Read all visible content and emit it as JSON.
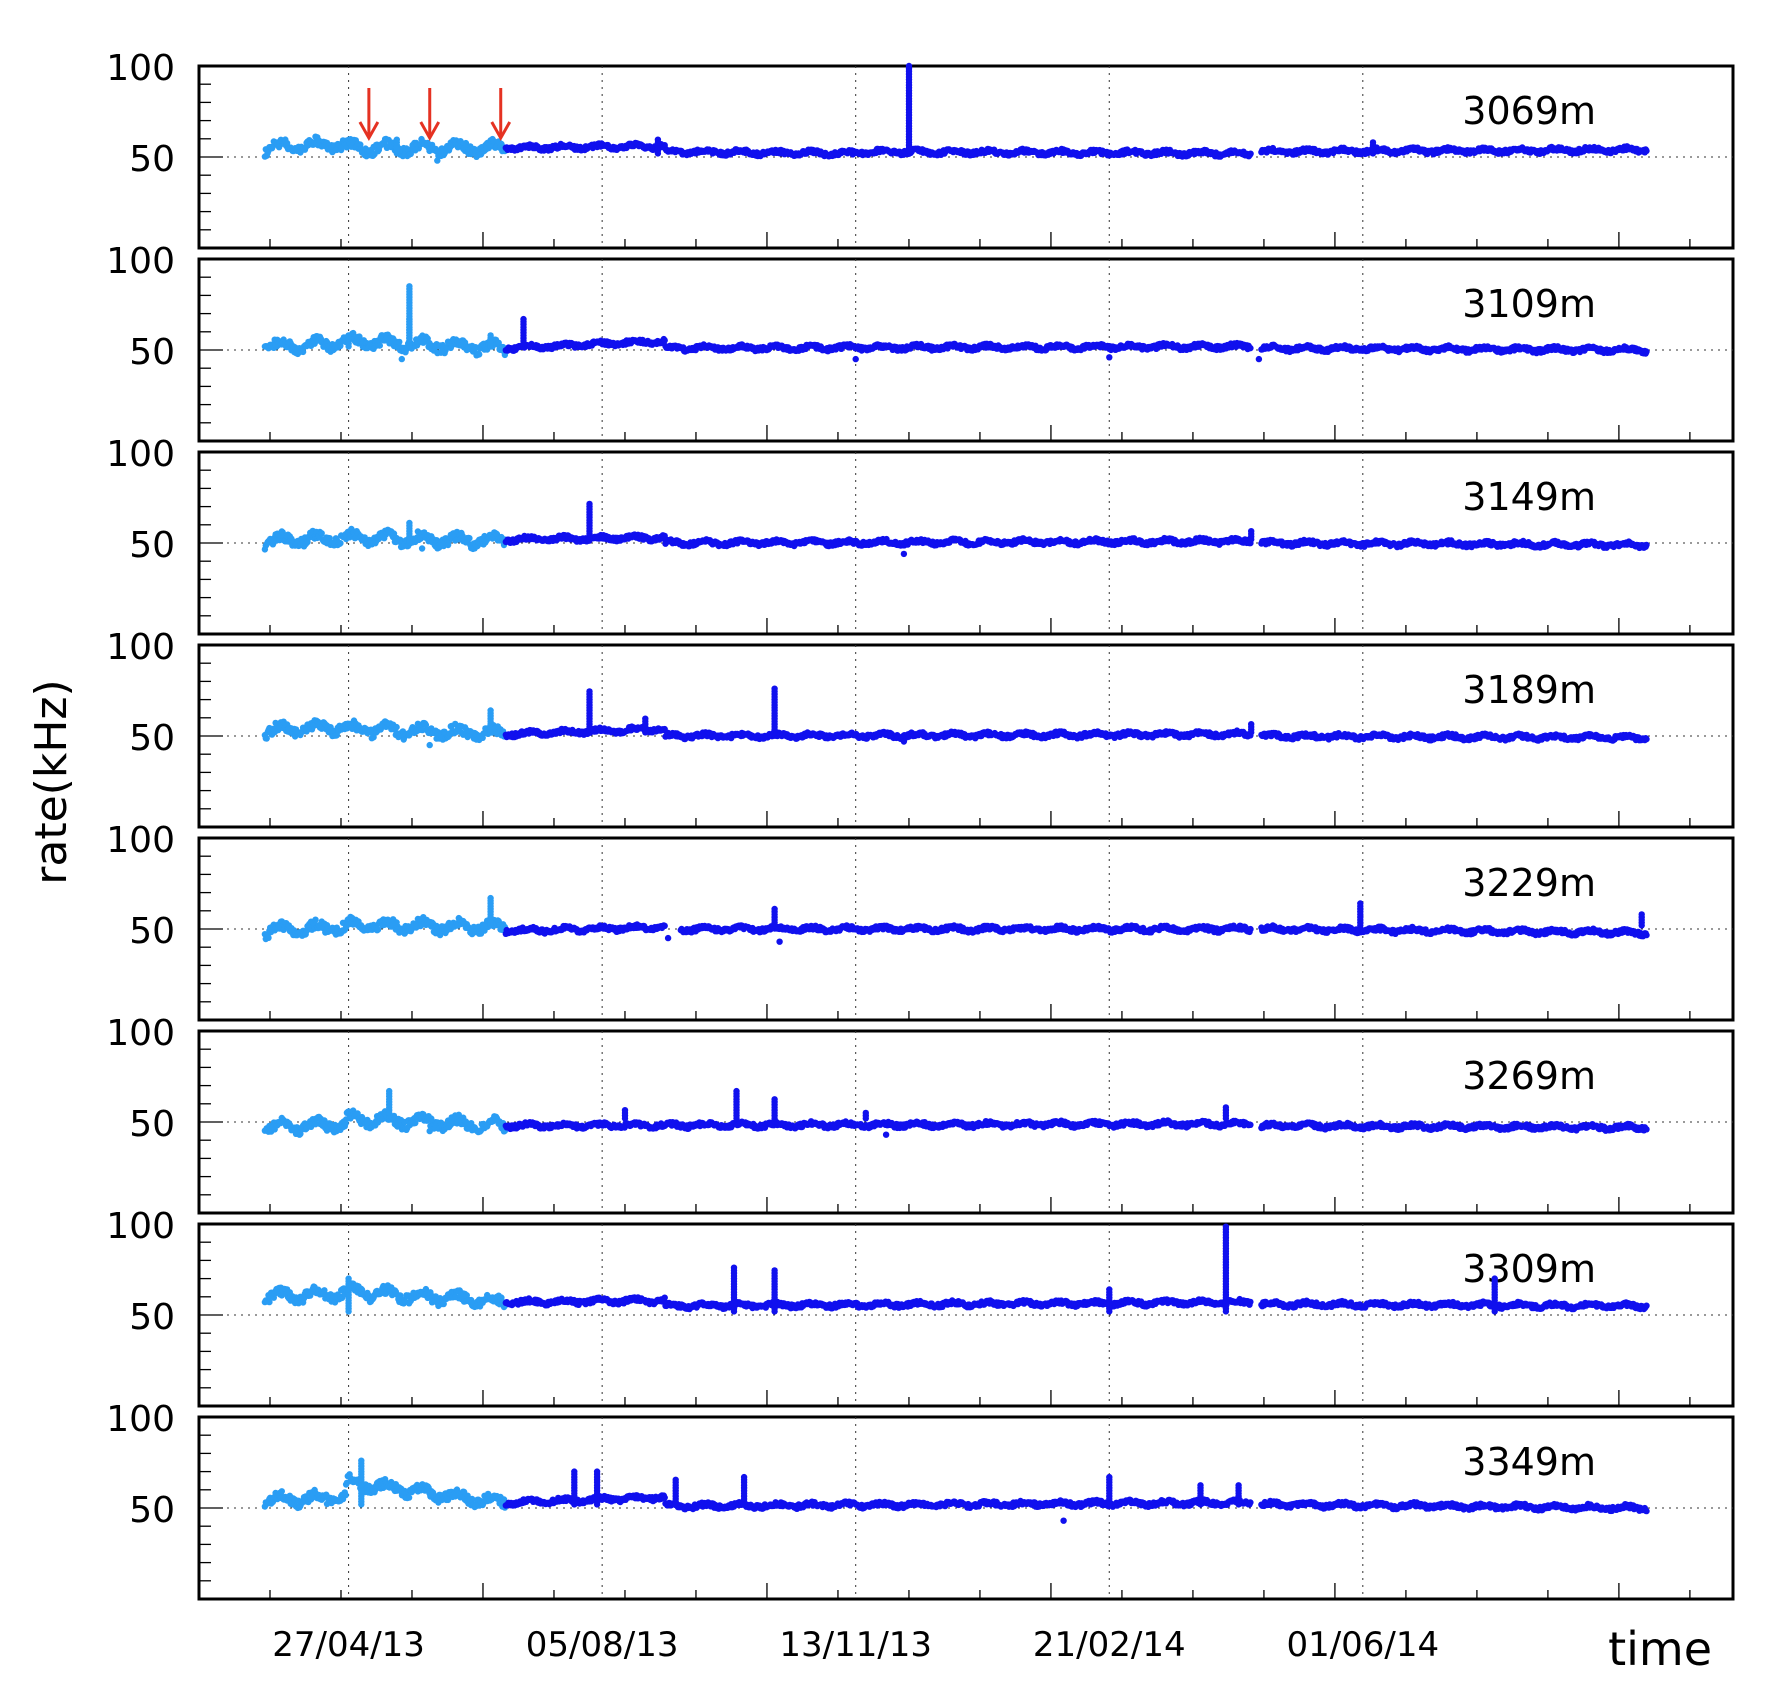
{
  "chart_data": {
    "type": "scatter",
    "ylabel": "rate(kHz)",
    "xlabel": "time",
    "x_ticks": [
      "27/04/13",
      "05/08/13",
      "13/11/13",
      "21/02/14",
      "01/06/14"
    ],
    "x_range": [
      "2013-02-27",
      "2014-10-25"
    ],
    "y_ticks": [
      50,
      100
    ],
    "ylim": [
      0,
      100
    ],
    "grid": "dotted, at x major ticks and y = 50",
    "colors": {
      "early": "#2a9df4",
      "late": "#1010ee",
      "arrow": "#e53222"
    },
    "arrows": [
      "2013-05-05",
      "2013-05-29",
      "2013-06-26"
    ],
    "panels": [
      {
        "label": "3069m",
        "segments": [
          [
            "2013-03-25",
            "2013-04-26",
            55,
            57,
            "early"
          ],
          [
            "2013-04-26",
            "2013-06-28",
            55,
            55,
            "early"
          ],
          [
            "2013-06-28",
            "2013-08-30",
            55,
            56,
            "late"
          ],
          [
            "2013-08-30",
            "2013-11-13",
            53,
            52,
            "late"
          ],
          [
            "2013-11-13",
            "2014-04-18",
            53,
            52,
            "late"
          ],
          [
            "2014-04-22",
            "2014-09-21",
            53,
            54,
            "late"
          ]
        ],
        "spikes": [
          [
            "2013-12-04",
            100
          ],
          [
            "2013-05-16",
            60
          ],
          [
            "2013-08-27",
            60
          ],
          [
            "2014-06-05",
            58
          ]
        ],
        "outliers": [
          [
            "2013-06-01",
            48
          ]
        ]
      },
      {
        "label": "3109m",
        "segments": [
          [
            "2013-03-25",
            "2013-04-26",
            52,
            54,
            "early"
          ],
          [
            "2013-04-26",
            "2013-06-28",
            55,
            51,
            "early"
          ],
          [
            "2013-06-28",
            "2013-08-30",
            51,
            55,
            "late"
          ],
          [
            "2013-08-30",
            "2014-04-18",
            51,
            52,
            "late"
          ],
          [
            "2014-04-22",
            "2014-09-21",
            51,
            50,
            "late"
          ]
        ],
        "spikes": [
          [
            "2013-05-21",
            85
          ],
          [
            "2013-05-21",
            68
          ],
          [
            "2013-07-05",
            68
          ],
          [
            "2013-04-27",
            59
          ],
          [
            "2013-06-22",
            59
          ]
        ],
        "outliers": [
          [
            "2013-05-18",
            45
          ],
          [
            "2013-11-13",
            45
          ],
          [
            "2014-02-21",
            46
          ],
          [
            "2014-04-21",
            45
          ]
        ]
      },
      {
        "label": "3149m",
        "segments": [
          [
            "2013-03-25",
            "2013-04-26",
            51,
            53,
            "early"
          ],
          [
            "2013-04-26",
            "2013-06-28",
            53,
            51,
            "early"
          ],
          [
            "2013-06-28",
            "2013-08-30",
            52,
            53,
            "late"
          ],
          [
            "2013-08-30",
            "2014-04-18",
            50,
            51,
            "late"
          ],
          [
            "2014-04-22",
            "2014-09-21",
            50,
            49,
            "late"
          ]
        ],
        "spikes": [
          [
            "2013-07-31",
            72
          ],
          [
            "2013-05-21",
            61
          ],
          [
            "2014-04-18",
            57
          ]
        ],
        "outliers": [
          [
            "2013-12-02",
            44
          ],
          [
            "2013-05-26",
            47
          ]
        ]
      },
      {
        "label": "3189m",
        "segments": [
          [
            "2013-03-25",
            "2013-04-26",
            53,
            55,
            "early"
          ],
          [
            "2013-04-26",
            "2013-06-28",
            54,
            51,
            "early"
          ],
          [
            "2013-06-28",
            "2013-08-30",
            51,
            54,
            "late"
          ],
          [
            "2013-08-30",
            "2014-04-18",
            50,
            51,
            "late"
          ],
          [
            "2014-04-22",
            "2014-09-21",
            50,
            49,
            "late"
          ]
        ],
        "spikes": [
          [
            "2013-07-31",
            75
          ],
          [
            "2013-10-12",
            76
          ],
          [
            "2013-06-22",
            64
          ],
          [
            "2013-08-22",
            60
          ],
          [
            "2014-04-18",
            57
          ]
        ],
        "outliers": [
          [
            "2013-05-29",
            45
          ],
          [
            "2013-12-02",
            47
          ]
        ]
      },
      {
        "label": "3229m",
        "segments": [
          [
            "2013-03-25",
            "2013-04-26",
            49,
            51,
            "early"
          ],
          [
            "2013-04-26",
            "2013-06-28",
            52,
            51,
            "early"
          ],
          [
            "2013-06-28",
            "2013-08-30",
            49,
            51,
            "late"
          ],
          [
            "2013-09-05",
            "2014-04-18",
            50,
            50,
            "late"
          ],
          [
            "2014-04-22",
            "2014-09-21",
            50,
            48,
            "late"
          ]
        ],
        "spikes": [
          [
            "2013-06-22",
            67
          ],
          [
            "2013-10-12",
            62
          ],
          [
            "2014-05-31",
            64
          ],
          [
            "2014-09-19",
            58
          ]
        ],
        "outliers": [
          [
            "2013-08-31",
            45
          ],
          [
            "2013-10-14",
            43
          ]
        ]
      },
      {
        "label": "3269m",
        "segments": [
          [
            "2013-03-25",
            "2013-04-26",
            47,
            49,
            "early"
          ],
          [
            "2013-04-26",
            "2013-06-28",
            52,
            48,
            "early"
          ],
          [
            "2013-06-28",
            "2014-04-18",
            48,
            49,
            "late"
          ],
          [
            "2014-04-22",
            "2014-09-21",
            48,
            47,
            "late"
          ]
        ],
        "spikes": [
          [
            "2013-05-13",
            68
          ],
          [
            "2013-09-27",
            67
          ],
          [
            "2013-10-12",
            63
          ],
          [
            "2013-11-17",
            56
          ],
          [
            "2014-04-08",
            58
          ],
          [
            "2013-08-14",
            57
          ]
        ],
        "outliers": [
          [
            "2013-05-29",
            45
          ],
          [
            "2013-11-25",
            43
          ]
        ]
      },
      {
        "label": "3309m",
        "segments": [
          [
            "2013-03-25",
            "2013-04-26",
            60,
            62,
            "early"
          ],
          [
            "2013-04-26",
            "2013-06-28",
            63,
            57,
            "early"
          ],
          [
            "2013-06-28",
            "2013-08-30",
            57,
            58,
            "late"
          ],
          [
            "2013-08-30",
            "2014-04-18",
            55,
            57,
            "late"
          ],
          [
            "2014-04-22",
            "2014-09-21",
            56,
            55,
            "late"
          ]
        ],
        "spikes": [
          [
            "2013-09-26",
            77
          ],
          [
            "2013-10-12",
            75
          ],
          [
            "2014-04-08",
            99
          ],
          [
            "2014-07-23",
            70
          ],
          [
            "2013-04-27",
            70
          ],
          [
            "2014-02-21",
            64
          ]
        ],
        "outliers": []
      },
      {
        "label": "3349m",
        "segments": [
          [
            "2013-03-25",
            "2013-04-26",
            54,
            56,
            "early"
          ],
          [
            "2013-04-26",
            "2013-06-28",
            64,
            53,
            "early"
          ],
          [
            "2013-06-28",
            "2013-08-30",
            53,
            56,
            "late"
          ],
          [
            "2013-08-30",
            "2014-04-18",
            51,
            53,
            "late"
          ],
          [
            "2014-04-22",
            "2014-09-21",
            52,
            50,
            "late"
          ]
        ],
        "spikes": [
          [
            "2013-05-02",
            76
          ],
          [
            "2013-07-25",
            70
          ],
          [
            "2013-08-03",
            71
          ],
          [
            "2013-09-03",
            66
          ],
          [
            "2013-09-30",
            67
          ],
          [
            "2014-02-21",
            67
          ],
          [
            "2014-03-29",
            63
          ],
          [
            "2014-04-13",
            63
          ]
        ],
        "outliers": [
          [
            "2014-02-03",
            43
          ]
        ]
      }
    ]
  }
}
